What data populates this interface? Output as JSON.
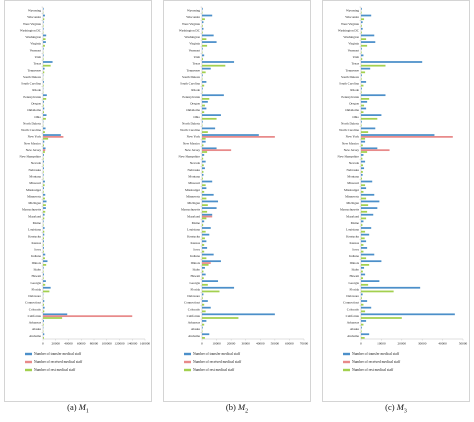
{
  "chart_data": [
    {
      "type": "bar",
      "orientation": "horizontal",
      "caption": "(a) M1",
      "caption_main": "(a) ",
      "caption_symbol": "M",
      "caption_index": "1",
      "xlim": [
        0,
        160000
      ],
      "xticks": [
        "0",
        "20000",
        "40000",
        "60000",
        "80000",
        "100000",
        "120000",
        "140000",
        "160000"
      ],
      "legend": [
        "Number of transfer medical staff",
        "Number of received medical staff",
        "Number of rest medical staff"
      ],
      "states": [
        "Wyoming",
        "Wisconsin",
        "West Virginia",
        "Washington DC",
        "Washington",
        "Virginia",
        "Vermont",
        "Utah",
        "Texas",
        "Tennessee",
        "South Dakota",
        "South Carolina",
        "Rhode",
        "Pennsylvania",
        "Oregon",
        "Oklahoma",
        "Ohio",
        "North Dakota",
        "North Carolina",
        "New York",
        "New Mexico",
        "New Jersey",
        "New Hampshire",
        "Nevada",
        "Nebraska",
        "Montana",
        "Missouri",
        "Mississippi",
        "Minnesota",
        "Michigan",
        "Massachusetts",
        "Maryland",
        "Maine",
        "Louisiana",
        "Kentucky",
        "Kansas",
        "Iowa",
        "Indiana",
        "Illinois",
        "Idaho",
        "Hawaii",
        "Georgia",
        "Florida",
        "Delaware",
        "Connecticut",
        "Colorado",
        "California",
        "Arkansas",
        "Alaska",
        "Alabama"
      ],
      "series": [
        {
          "name": "Number of transfer medical staff",
          "values": [
            1000,
            3000,
            1000,
            1000,
            5000,
            4500,
            1000,
            1000,
            15000,
            2500,
            500,
            1500,
            500,
            6000,
            1500,
            2000,
            5500,
            500,
            4000,
            28000,
            2000,
            4000,
            1500,
            1500,
            1500,
            1000,
            3000,
            1500,
            3500,
            5500,
            4500,
            2500,
            1000,
            2500,
            2000,
            1500,
            1500,
            3500,
            7000,
            1000,
            1500,
            4500,
            12000,
            500,
            2000,
            2500,
            38000,
            1500,
            500,
            2000
          ]
        },
        {
          "name": "Number of received medical staff",
          "values": [
            0,
            0,
            0,
            0,
            0,
            0,
            0,
            0,
            0,
            0,
            0,
            0,
            0,
            0,
            0,
            0,
            0,
            0,
            0,
            32000,
            0,
            3500,
            0,
            0,
            0,
            0,
            0,
            0,
            0,
            0,
            0,
            0,
            0,
            0,
            0,
            0,
            0,
            0,
            0,
            0,
            0,
            0,
            0,
            0,
            0,
            0,
            140000,
            0,
            0,
            0
          ]
        },
        {
          "name": "Number of rest medical staff",
          "values": [
            500,
            2000,
            800,
            600,
            4000,
            3000,
            400,
            900,
            12000,
            2000,
            300,
            1000,
            300,
            5000,
            1200,
            1500,
            4500,
            300,
            3000,
            8000,
            1500,
            3000,
            1000,
            1000,
            1000,
            700,
            2500,
            1000,
            3000,
            4500,
            3500,
            2000,
            800,
            2000,
            1500,
            1200,
            1200,
            3000,
            5000,
            800,
            1000,
            3500,
            10000,
            400,
            1500,
            2000,
            30000,
            1000,
            300,
            1500
          ]
        }
      ]
    },
    {
      "type": "bar",
      "orientation": "horizontal",
      "caption": "(b) M2",
      "caption_main": "(b) ",
      "caption_symbol": "M",
      "caption_index": "2",
      "xlim": [
        0,
        70000
      ],
      "xticks": [
        "0",
        "10000",
        "20000",
        "30000",
        "40000",
        "50000",
        "60000",
        "70000"
      ],
      "legend": [
        "Number of transfer medical staff",
        "Number of received medical staff",
        "Number of rest medical staff"
      ],
      "states": [
        "Wyoming",
        "Wisconsin",
        "West Virginia",
        "Washington DC",
        "Washington",
        "Virginia",
        "Vermont",
        "Utah",
        "Texas",
        "Tennessee",
        "South Dakota",
        "South Carolina",
        "Rhode",
        "Pennsylvania",
        "Oregon",
        "Oklahoma",
        "Ohio",
        "North Dakota",
        "North Carolina",
        "New York",
        "New Mexico",
        "New Jersey",
        "New Hampshire",
        "Nevada",
        "Nebraska",
        "Montana",
        "Missouri",
        "Mississippi",
        "Minnesota",
        "Michigan",
        "Massachusetts",
        "Maryland",
        "Maine",
        "Louisiana",
        "Kentucky",
        "Kansas",
        "Iowa",
        "Indiana",
        "Illinois",
        "Idaho",
        "Hawaii",
        "Georgia",
        "Florida",
        "Delaware",
        "Connecticut",
        "Colorado",
        "California",
        "Arkansas",
        "Alaska",
        "Alabama"
      ],
      "series": [
        {
          "name": "Number of transfer medical staff",
          "values": [
            500,
            7000,
            1000,
            1000,
            8000,
            10000,
            500,
            1500,
            22000,
            6000,
            500,
            3000,
            500,
            15000,
            4000,
            3000,
            13000,
            500,
            9000,
            39000,
            2500,
            10000,
            1500,
            2500,
            2000,
            1000,
            7000,
            3000,
            8000,
            11000,
            10000,
            7000,
            1500,
            6000,
            5000,
            3000,
            3500,
            8000,
            13000,
            2000,
            2500,
            11000,
            22000,
            1000,
            4000,
            6000,
            50000,
            3000,
            500,
            5000
          ]
        },
        {
          "name": "Number of received medical staff",
          "values": [
            0,
            0,
            0,
            0,
            0,
            0,
            0,
            0,
            0,
            0,
            0,
            0,
            0,
            0,
            0,
            0,
            0,
            0,
            0,
            50000,
            0,
            20000,
            0,
            0,
            0,
            0,
            0,
            0,
            0,
            0,
            0,
            7000,
            0,
            0,
            0,
            0,
            0,
            0,
            6000,
            0,
            0,
            0,
            0,
            0,
            0,
            0,
            0,
            0,
            0,
            0
          ]
        },
        {
          "name": "Number of rest medical staff",
          "values": [
            300,
            2000,
            500,
            500,
            3000,
            3500,
            300,
            700,
            16000,
            2500,
            300,
            1500,
            300,
            5000,
            2000,
            1500,
            10000,
            300,
            4000,
            2500,
            1000,
            3500,
            800,
            1200,
            1000,
            600,
            2500,
            1500,
            3000,
            4000,
            3500,
            3000,
            800,
            2500,
            2000,
            1500,
            1500,
            3000,
            4500,
            1000,
            1200,
            4000,
            12000,
            500,
            1500,
            2500,
            25000,
            1500,
            300,
            2000
          ]
        }
      ]
    },
    {
      "type": "bar",
      "orientation": "horizontal",
      "caption": "(c) M3",
      "caption_main": "(c) ",
      "caption_symbol": "M",
      "caption_index": "3",
      "xlim": [
        0,
        50000
      ],
      "xticks": [
        "0",
        "10000",
        "20000",
        "30000",
        "40000",
        "50000"
      ],
      "legend": [
        "Number of transfer medical staff",
        "Number of received medical staff",
        "Number of rest medical staff"
      ],
      "states": [
        "Wyoming",
        "Wisconsin",
        "West Virginia",
        "Washington DC",
        "Washington",
        "Virginia",
        "Vermont",
        "Utah",
        "Texas",
        "Tennessee",
        "South Dakota",
        "South Carolina",
        "Rhode",
        "Pennsylvania",
        "Oregon",
        "Oklahoma",
        "Ohio",
        "North Dakota",
        "North Carolina",
        "New York",
        "New Mexico",
        "New Jersey",
        "New Hampshire",
        "Nevada",
        "Nebraska",
        "Montana",
        "Missouri",
        "Mississippi",
        "Minnesota",
        "Michigan",
        "Massachusetts",
        "Maryland",
        "Maine",
        "Louisiana",
        "Kentucky",
        "Kansas",
        "Iowa",
        "Indiana",
        "Illinois",
        "Idaho",
        "Hawaii",
        "Georgia",
        "Florida",
        "Delaware",
        "Connecticut",
        "Colorado",
        "California",
        "Arkansas",
        "Alaska",
        "Alabama"
      ],
      "series": [
        {
          "name": "Number of transfer medical staff",
          "values": [
            400,
            5000,
            800,
            800,
            6500,
            7000,
            400,
            1200,
            30000,
            4500,
            400,
            2500,
            400,
            12000,
            3000,
            2500,
            10000,
            400,
            7000,
            36000,
            2000,
            8000,
            1200,
            2000,
            1500,
            800,
            5500,
            2500,
            6500,
            9000,
            8000,
            6000,
            1200,
            5000,
            4000,
            2500,
            3000,
            6500,
            10000,
            1500,
            2000,
            9000,
            29000,
            800,
            3000,
            5000,
            46000,
            2500,
            400,
            4000
          ]
        },
        {
          "name": "Number of received medical staff",
          "values": [
            0,
            0,
            0,
            0,
            0,
            0,
            0,
            0,
            0,
            0,
            0,
            0,
            0,
            0,
            0,
            0,
            0,
            0,
            0,
            45000,
            0,
            14000,
            0,
            0,
            0,
            0,
            0,
            0,
            0,
            0,
            0,
            0,
            0,
            0,
            0,
            0,
            0,
            0,
            0,
            0,
            0,
            0,
            0,
            0,
            0,
            0,
            0,
            0,
            0,
            0
          ]
        },
        {
          "name": "Number of rest medical staff",
          "values": [
            300,
            1500,
            400,
            400,
            2500,
            3000,
            300,
            600,
            12000,
            2000,
            300,
            1200,
            300,
            4000,
            1500,
            1200,
            8000,
            300,
            3500,
            2000,
            900,
            3000,
            700,
            1000,
            900,
            500,
            2000,
            1200,
            2500,
            3500,
            3000,
            2500,
            700,
            2000,
            1800,
            1200,
            1200,
            2500,
            4000,
            900,
            1000,
            3500,
            16000,
            400,
            1200,
            2000,
            20000,
            1200,
            300,
            1800
          ]
        }
      ]
    }
  ],
  "colors": {
    "transfer": "#4b8fc9",
    "received": "#e88a8a",
    "rest": "#a3d04f",
    "axis": "#bfbfbf",
    "text": "#222222"
  }
}
